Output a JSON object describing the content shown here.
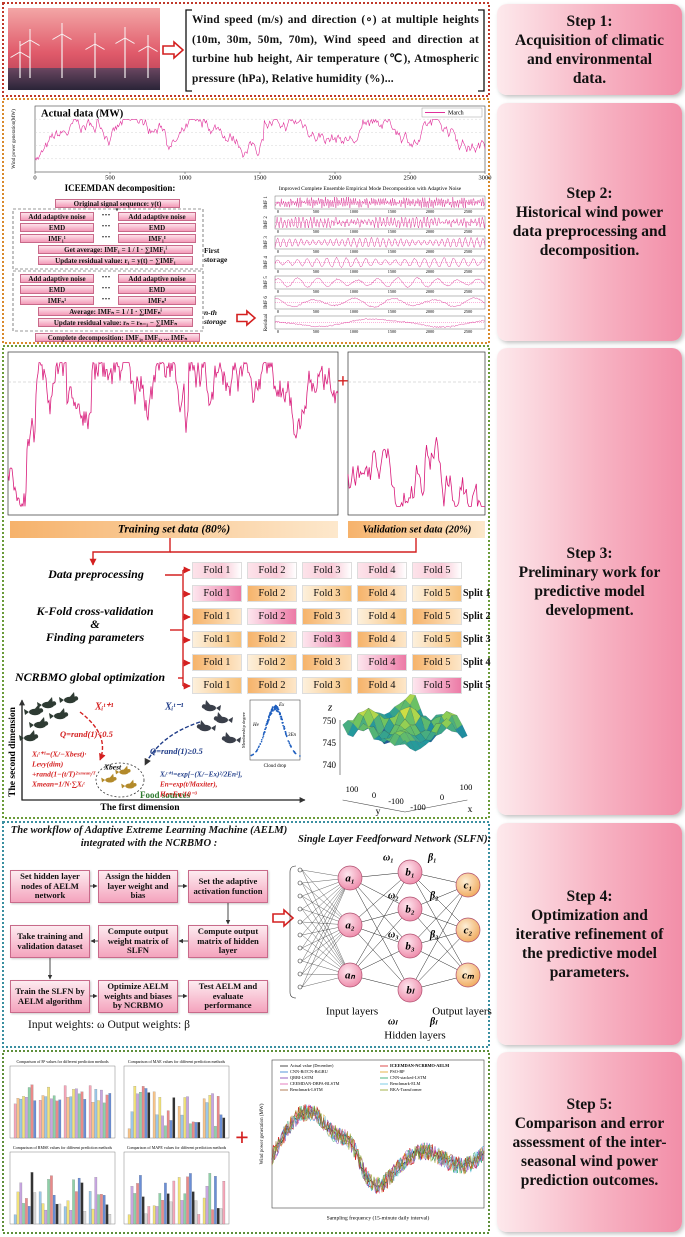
{
  "steps": [
    {
      "label": "Step 1:",
      "text": "Acquisition of climatic and environmental data."
    },
    {
      "label": "Step 2:",
      "text": "Historical wind power data preprocessing and decomposition."
    },
    {
      "label": "Step 3:",
      "text": "Preliminary work for predictive model development."
    },
    {
      "label": "Step 4:",
      "text": "Optimization and iterative refinement of the predictive model parameters."
    },
    {
      "label": "Step 5:",
      "text": "Comparison and error assessment of the inter-seasonal wind power prediction outcomes."
    }
  ],
  "acquisition": {
    "variables": "Wind speed (m/s) and direction (∘) at multiple heights (10m, 30m, 50m, 70m), Wind speed and direction at turbine hub height, Air temperature (℃), Atmospheric pressure (hPa), Relative humidity (%)..."
  },
  "history": {
    "title": "Actual data (MW)",
    "legend": "March",
    "y_label": "Wind power generation(MW)",
    "x_ticks": [
      "0",
      "500",
      "1000",
      "1500",
      "2000",
      "2500",
      "3000"
    ],
    "iceemdan": {
      "title": "ICEEMDAN decomposition:",
      "original": "Original signal sequence: y(t)",
      "noise": "Add adaptive noise",
      "emd": "EMD",
      "dots": "···",
      "first": {
        "imf_1": "IMF₁¹",
        "imf_i": "IMF₁ᴵ",
        "average": "Get average: IMF₁ = 1 / I · ∑IMF₁ⁱ",
        "residual": "Update residual value: r₁ = y(t) − ∑IMF₁",
        "storage": "First storage"
      },
      "nth": {
        "imf_1": "IMFₙ¹",
        "imf_i": "IMFₙᴵ",
        "average": "Average: IMFₙ = 1 / I · ∑IMFₙⁱ",
        "residual": "Update residual value: rₙ = rₙ₋₁ − ∑IMFₙ",
        "storage": "n-th storage"
      },
      "complete": "Complete decomposition: IMF₁, IMF₂, ... IMFₙ"
    },
    "decomposition": {
      "title": "Improved Complete Ensemble Empirical Mode Decomposition with Adaptive Noise",
      "components": [
        "IMF 1",
        "IMF 2",
        "IMF 3",
        "IMF 4",
        "IMF 5",
        "IMF 6",
        "Residual"
      ],
      "x_ticks": [
        "0",
        "500",
        "1000",
        "1500",
        "2000",
        "2500"
      ]
    }
  },
  "preparation": {
    "training": "Training set data (80%)",
    "plus": "+",
    "validation": "Validation set data (20%)",
    "preprocessing": "Data preprocessing",
    "kfold": "K-Fold cross-validation",
    "amp": "&",
    "finding": "Finding parameters",
    "ncrbmo": "NCRBMO global optimization",
    "folds": [
      "Fold 1",
      "Fold 2",
      "Fold 3",
      "Fold 4",
      "Fold 5"
    ],
    "splits": [
      "Split 1",
      "Split 2",
      "Split 3",
      "Split 4",
      "Split 5"
    ]
  },
  "optimization": {
    "x_next": "Xᵢᵗ⁺¹",
    "x_prev": "Xᵢᵗ⁻¹",
    "q_low": "Q=rand(1)<0.5",
    "q_high": "Q=rand(1)≥0.5",
    "update": [
      "Xᵢᵗ⁺¹=(Xᵢᵗ−Xbest)·",
      "Levy(dim)",
      "+rand(1−(t/T)²ˣᵐᵉᵃⁿ/ᵀ",
      "Xmean=1/N·∑Xᵢᵗ"
    ],
    "best": "Xbest",
    "food": "Food sources",
    "cloud_update": [
      "Xᵢᵗ⁺¹=exp[−(Xᵢᵗ−Ex)²/2En²],",
      "En=exp(t/Maxiter),",
      "He=En/10⁻³"
    ],
    "y_axis": "The second dimension",
    "x_axis": "The first dimension",
    "cloud": {
      "y_label": "Membership degree",
      "x_label": "Cloud drop",
      "ex": "Ex",
      "he": "He",
      "en": "3En"
    },
    "surface": {
      "z": "z",
      "x": "x",
      "y": "y",
      "z_ticks": [
        "750",
        "745",
        "740"
      ],
      "x_ticks": [
        "-100",
        "0",
        "100"
      ],
      "y_ticks": [
        "100",
        "0",
        "-100"
      ]
    }
  },
  "model": {
    "workflow_title": "The workflow of Adaptive Extreme Learning Machine (AELM) integrated with the NCRBMO :",
    "boxes": [
      "Set hidden layer nodes of AELM network",
      "Assign the hidden layer weight and bias",
      "Set the adaptive activation function",
      "Take training and validation dataset",
      "Compute output weight matrix of SLFN",
      "Compute output matrix of hidden layer",
      "Train the SLFN by AELM algorithm",
      "Optimize AELM weights and biases by NCRBMO",
      "Test AELM and evaluate performance"
    ],
    "weights": "Input weights: ω    Output weights: β",
    "slfn_title": "Single Layer Feedforward Network (SLFN):",
    "input_nodes": [
      "a₁",
      "a₂",
      "aₙ"
    ],
    "hidden_nodes": [
      "b₁",
      "b₂",
      "b₃",
      "bₗ"
    ],
    "output_nodes": [
      "c₁",
      "c₂",
      "cₘ"
    ],
    "omega": [
      "ω₁",
      "ω₂",
      "ω₃",
      "ωₗ"
    ],
    "beta": [
      "β₁",
      "β₂",
      "β₃",
      "βₗ"
    ],
    "input_label": "Input layers",
    "hidden_label": "Hidden layers",
    "output_label": "Output layers"
  },
  "comparison": {
    "bar_titles": [
      "Comparison of R² values for different prediction methods",
      "Comparison of MAE values for different prediction methods",
      "Comparison of RMSE values for different prediction methods",
      "Comparison of MAPE values for different prediction methods"
    ],
    "plus": "+",
    "y_label": "Wind power generation (MW)",
    "x_label": "Sampling frequency (15-minute daily interval)",
    "legend": [
      "Actual value (December)",
      "ICEEMDAN-NCRBMO-AELM",
      "CNN-BiTCN-BiGRU",
      "PSO-BP",
      "QRBI-LSTM",
      "CNN-stacked-LSTM",
      "CEEMDAN-DBPA-BLSTM",
      "Benchmark-ELM",
      "Benchmark-LSTM",
      "BKA-Transformer"
    ]
  }
}
